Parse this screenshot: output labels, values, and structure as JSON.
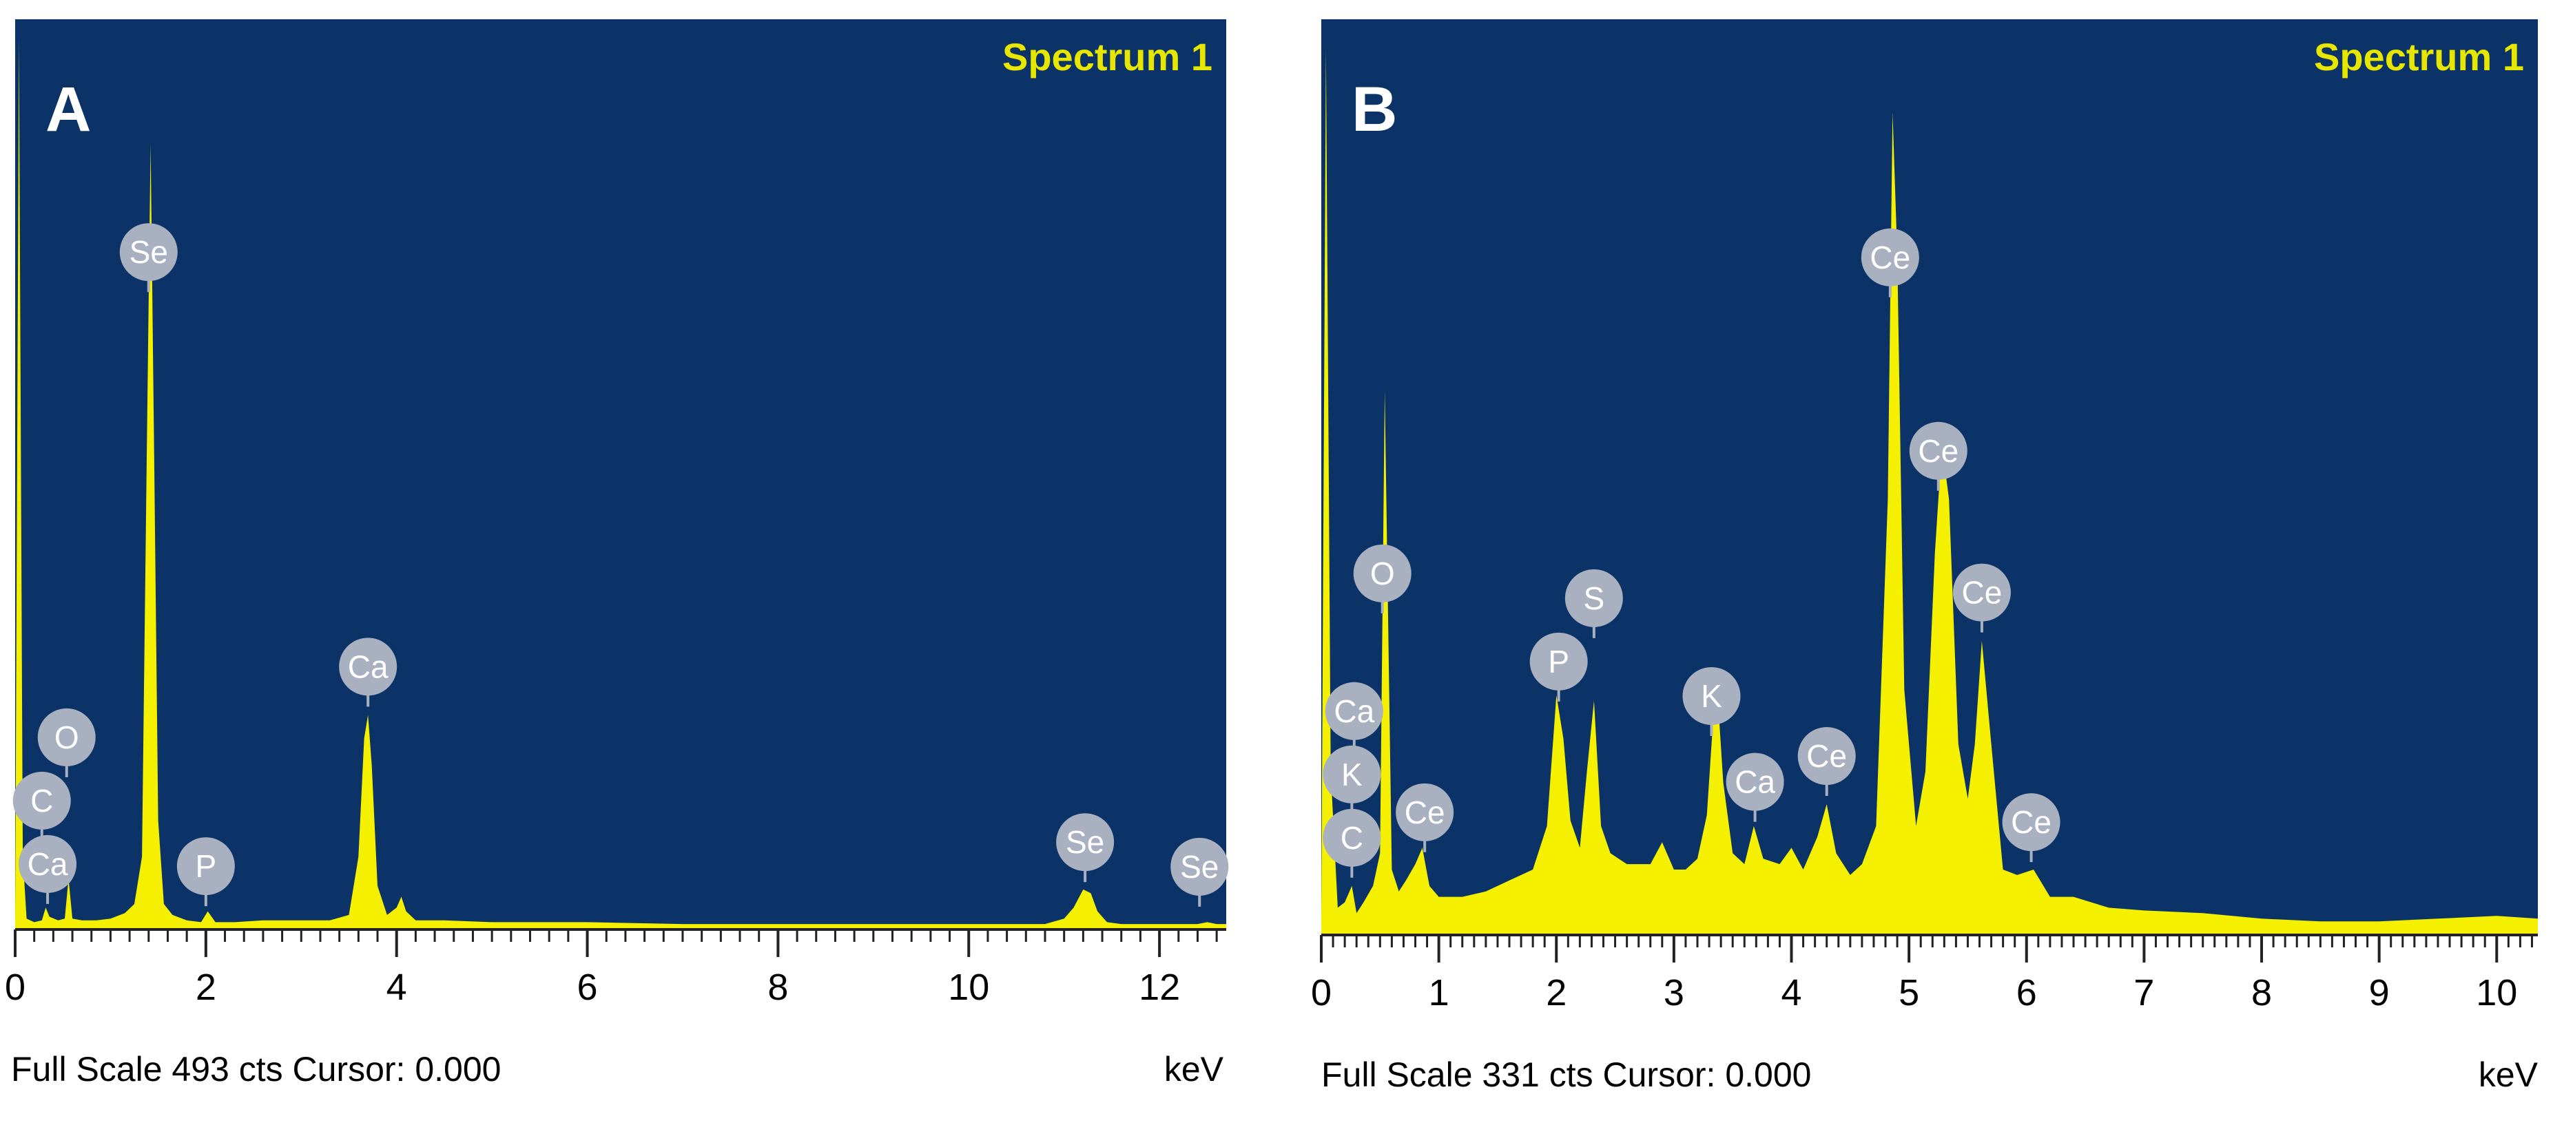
{
  "chart_data": [
    {
      "type": "area",
      "panel_label": "A",
      "title": "Spectrum 1",
      "xlabel": "keV",
      "footer": "Full Scale 493 cts Cursor: 0.000",
      "xlim": [
        0,
        12.7
      ],
      "ylim": [
        0,
        493
      ],
      "xticks": [
        0,
        2,
        4,
        6,
        8,
        10,
        12
      ],
      "tick_labels": [
        "0",
        "2",
        "4",
        "6",
        "8",
        "10",
        "12"
      ],
      "series": [
        {
          "name": "Spectrum 1",
          "x": [
            0,
            0.04,
            0.08,
            0.12,
            0.2,
            0.28,
            0.32,
            0.36,
            0.45,
            0.52,
            0.56,
            0.6,
            0.7,
            0.85,
            1.0,
            1.15,
            1.25,
            1.33,
            1.38,
            1.42,
            1.46,
            1.5,
            1.56,
            1.65,
            1.8,
            1.95,
            2.02,
            2.1,
            2.3,
            2.6,
            3.0,
            3.3,
            3.5,
            3.6,
            3.66,
            3.7,
            3.74,
            3.8,
            3.9,
            4.0,
            4.05,
            4.1,
            4.2,
            4.5,
            5.0,
            6.0,
            7.0,
            8.0,
            9.0,
            10.0,
            10.8,
            11.0,
            11.1,
            11.2,
            11.28,
            11.35,
            11.45,
            11.6,
            12.0,
            12.4,
            12.5,
            12.6,
            12.7
          ],
          "y": [
            6,
            490,
            40,
            6,
            4,
            5,
            12,
            7,
            5,
            6,
            28,
            6,
            5,
            5,
            6,
            9,
            14,
            40,
            260,
            432,
            250,
            60,
            14,
            8,
            5,
            4,
            10,
            4,
            4,
            5,
            5,
            5,
            8,
            40,
            105,
            118,
            90,
            24,
            8,
            12,
            18,
            10,
            5,
            5,
            4,
            4,
            3,
            3,
            3,
            3,
            3,
            6,
            12,
            22,
            20,
            10,
            4,
            3,
            3,
            3,
            4,
            3,
            3
          ]
        }
      ],
      "annotations": [
        {
          "label": "Ca",
          "x": 0.34
        },
        {
          "label": "C",
          "x": 0.28
        },
        {
          "label": "O",
          "x": 0.54
        },
        {
          "label": "Se",
          "x": 1.4
        },
        {
          "label": "P",
          "x": 2.0
        },
        {
          "label": "Ca",
          "x": 3.7
        },
        {
          "label": "Se",
          "x": 11.22
        },
        {
          "label": "Se",
          "x": 12.42
        }
      ]
    },
    {
      "type": "area",
      "panel_label": "B",
      "title": "Spectrum 1",
      "xlabel": "keV",
      "footer": "Full Scale 331 cts Cursor: 0.000",
      "xlim": [
        0,
        10.35
      ],
      "ylim": [
        0,
        331
      ],
      "xticks": [
        0,
        1,
        2,
        3,
        4,
        5,
        6,
        7,
        8,
        9,
        10
      ],
      "tick_labels": [
        "0",
        "1",
        "2",
        "3",
        "4",
        "5",
        "6",
        "7",
        "8",
        "9",
        "10"
      ],
      "series": [
        {
          "name": "Spectrum 1",
          "x": [
            0,
            0.04,
            0.08,
            0.14,
            0.2,
            0.26,
            0.3,
            0.36,
            0.44,
            0.5,
            0.54,
            0.6,
            0.66,
            0.72,
            0.8,
            0.86,
            0.92,
            1.0,
            1.2,
            1.4,
            1.6,
            1.8,
            1.92,
            2.0,
            2.06,
            2.12,
            2.2,
            2.26,
            2.32,
            2.38,
            2.46,
            2.6,
            2.8,
            2.9,
            3.0,
            3.1,
            3.2,
            3.28,
            3.36,
            3.42,
            3.5,
            3.6,
            3.68,
            3.76,
            3.9,
            4.0,
            4.1,
            4.22,
            4.3,
            4.38,
            4.5,
            4.6,
            4.72,
            4.82,
            4.86,
            4.9,
            4.96,
            5.06,
            5.14,
            5.22,
            5.28,
            5.34,
            5.42,
            5.5,
            5.56,
            5.62,
            5.7,
            5.8,
            5.92,
            6.06,
            6.2,
            6.4,
            6.7,
            7.0,
            7.5,
            8.0,
            8.5,
            9.0,
            9.5,
            10.0,
            10.35
          ],
          "y": [
            8,
            325,
            60,
            10,
            12,
            18,
            8,
            12,
            18,
            30,
            200,
            24,
            16,
            20,
            26,
            32,
            18,
            14,
            14,
            16,
            20,
            24,
            40,
            88,
            72,
            42,
            32,
            60,
            86,
            40,
            30,
            26,
            26,
            34,
            24,
            24,
            28,
            44,
            96,
            56,
            30,
            26,
            40,
            28,
            26,
            32,
            24,
            36,
            48,
            30,
            22,
            26,
            40,
            160,
            302,
            250,
            90,
            40,
            60,
            140,
            180,
            160,
            70,
            50,
            70,
            108,
            70,
            24,
            22,
            24,
            14,
            14,
            10,
            9,
            8,
            6,
            5,
            5,
            6,
            7,
            6
          ]
        }
      ],
      "annotations": [
        {
          "label": "C",
          "x": 0.26
        },
        {
          "label": "K",
          "x": 0.26
        },
        {
          "label": "Ca",
          "x": 0.28
        },
        {
          "label": "O",
          "x": 0.52
        },
        {
          "label": "Ce",
          "x": 0.88
        },
        {
          "label": "P",
          "x": 2.02
        },
        {
          "label": "S",
          "x": 2.32
        },
        {
          "label": "K",
          "x": 3.32
        },
        {
          "label": "Ca",
          "x": 3.69
        },
        {
          "label": "Ce",
          "x": 4.3
        },
        {
          "label": "Ce",
          "x": 4.84
        },
        {
          "label": "Ce",
          "x": 5.25
        },
        {
          "label": "Ce",
          "x": 5.62
        },
        {
          "label": "Ce",
          "x": 6.04
        }
      ]
    }
  ],
  "colors": {
    "plot_background": "#0b3367",
    "spectrum_fill": "#f4f000",
    "title_color": "#e6e600",
    "marker_fill": "#a9b0c0",
    "marker_text": "#ffffff",
    "frame_background": "#ffffff",
    "axis_text": "#000000"
  }
}
